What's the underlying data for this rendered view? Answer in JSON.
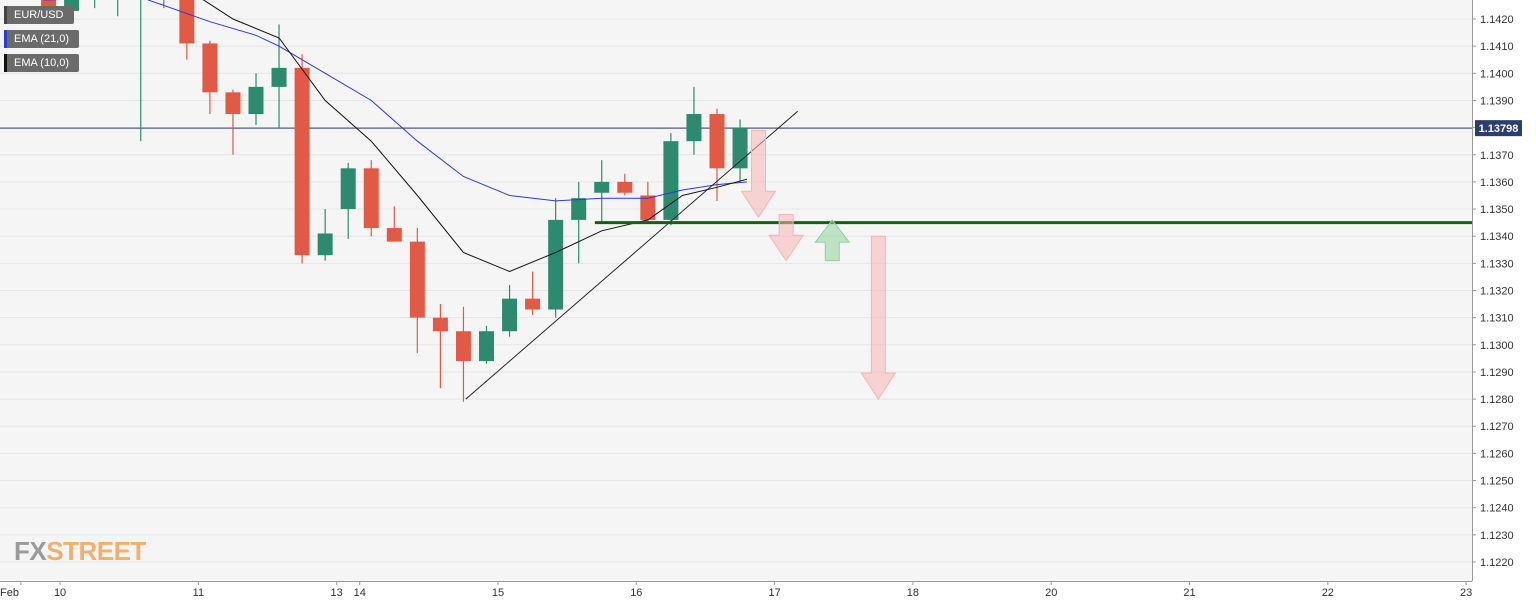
{
  "legend": [
    {
      "label": "EUR/USD",
      "color": "#555555"
    },
    {
      "label": "EMA (21,0)",
      "color": "#2a3bd6"
    },
    {
      "label": "EMA (10,0)",
      "color": "#111111"
    }
  ],
  "logo": {
    "part1": "FX",
    "part2": "STREET"
  },
  "colors": {
    "up": "#2e8a6e",
    "down": "#e05a45",
    "ema21": "#2a3bd6",
    "ema10": "#111111",
    "support": "#1a5c1a",
    "price_line": "#2b3e6e",
    "arrow_down": "#f7b4b4",
    "arrow_up": "#8fd49b",
    "grid": "#e6e6e6",
    "plot_bg": "#f5f5f5"
  },
  "chart_data": {
    "type": "candlestick",
    "symbol": "EUR/USD",
    "timeframe": "4h",
    "ylim": [
      1.1213,
      1.1427
    ],
    "y_ticks": [
      "1.1420",
      "1.1410",
      "1.1400",
      "1.1390",
      "1.1380",
      "1.1370",
      "1.1360",
      "1.1350",
      "1.1340",
      "1.1330",
      "1.1320",
      "1.1310",
      "1.1300",
      "1.1290",
      "1.1280",
      "1.1270",
      "1.1260",
      "1.1250",
      "1.1240",
      "1.1230",
      "1.1220"
    ],
    "x_labels": [
      {
        "label": "Feb",
        "slot": -0.2
      },
      {
        "label": "10",
        "slot": 1.5
      },
      {
        "label": "11",
        "slot": 7.5
      },
      {
        "label": "13",
        "slot": 13.5
      },
      {
        "label": "14",
        "slot": 14.5
      },
      {
        "label": "15",
        "slot": 20.5
      },
      {
        "label": "16",
        "slot": 26.5
      },
      {
        "label": "17",
        "slot": 32.5
      },
      {
        "label": "18",
        "slot": 38.5
      },
      {
        "label": "20",
        "slot": 44.5
      },
      {
        "label": "21",
        "slot": 50.5
      },
      {
        "label": "22",
        "slot": 56.5
      },
      {
        "label": "23",
        "slot": 62.5
      }
    ],
    "candles": [
      {
        "o": 1.143,
        "h": 1.1432,
        "l": 1.1419,
        "c": 1.1423
      },
      {
        "o": 1.1423,
        "h": 1.1427,
        "l": 1.1419,
        "c": 1.1428
      },
      {
        "o": 1.1428,
        "h": 1.143,
        "l": 1.1424,
        "c": 1.1428
      },
      {
        "o": 1.1428,
        "h": 1.1432,
        "l": 1.1421,
        "c": 1.1428
      },
      {
        "o": 1.1428,
        "h": 1.1431,
        "l": 1.1375,
        "c": 1.1429
      },
      {
        "o": 1.1429,
        "h": 1.1432,
        "l": 1.1424,
        "c": 1.1429
      },
      {
        "o": 1.1429,
        "h": 1.1432,
        "l": 1.1405,
        "c": 1.1411
      },
      {
        "o": 1.1411,
        "h": 1.1412,
        "l": 1.1385,
        "c": 1.1393
      },
      {
        "o": 1.1393,
        "h": 1.1394,
        "l": 1.137,
        "c": 1.1385
      },
      {
        "o": 1.1385,
        "h": 1.14,
        "l": 1.1381,
        "c": 1.1395
      },
      {
        "o": 1.1395,
        "h": 1.1418,
        "l": 1.138,
        "c": 1.1402
      },
      {
        "o": 1.1402,
        "h": 1.1407,
        "l": 1.133,
        "c": 1.1333
      },
      {
        "o": 1.1333,
        "h": 1.135,
        "l": 1.1331,
        "c": 1.1341
      },
      {
        "o": 1.135,
        "h": 1.1367,
        "l": 1.1339,
        "c": 1.1365
      },
      {
        "o": 1.1365,
        "h": 1.1368,
        "l": 1.134,
        "c": 1.1343
      },
      {
        "o": 1.1343,
        "h": 1.1351,
        "l": 1.1339,
        "c": 1.1338
      },
      {
        "o": 1.1338,
        "h": 1.1343,
        "l": 1.1297,
        "c": 1.131
      },
      {
        "o": 1.131,
        "h": 1.1315,
        "l": 1.1284,
        "c": 1.1305
      },
      {
        "o": 1.1305,
        "h": 1.1314,
        "l": 1.1279,
        "c": 1.1294
      },
      {
        "o": 1.1294,
        "h": 1.1307,
        "l": 1.1293,
        "c": 1.1305
      },
      {
        "o": 1.1305,
        "h": 1.1322,
        "l": 1.1303,
        "c": 1.1317
      },
      {
        "o": 1.1317,
        "h": 1.1327,
        "l": 1.1311,
        "c": 1.1313
      },
      {
        "o": 1.1313,
        "h": 1.1354,
        "l": 1.131,
        "c": 1.1346
      },
      {
        "o": 1.1346,
        "h": 1.136,
        "l": 1.133,
        "c": 1.1354
      },
      {
        "o": 1.1356,
        "h": 1.1368,
        "l": 1.1345,
        "c": 1.136
      },
      {
        "o": 1.136,
        "h": 1.1363,
        "l": 1.1355,
        "c": 1.1356
      },
      {
        "o": 1.1355,
        "h": 1.136,
        "l": 1.1345,
        "c": 1.1346
      },
      {
        "o": 1.1346,
        "h": 1.1378,
        "l": 1.1344,
        "c": 1.1375
      },
      {
        "o": 1.1375,
        "h": 1.1395,
        "l": 1.137,
        "c": 1.1385
      },
      {
        "o": 1.1385,
        "h": 1.1387,
        "l": 1.1353,
        "c": 1.1365
      },
      {
        "o": 1.1365,
        "h": 1.1383,
        "l": 1.136,
        "c": 1.138
      }
    ],
    "first_slot": 1,
    "ema21": [
      [
        0.8,
        1.1427
      ],
      [
        5.0,
        1.1428
      ],
      [
        8.0,
        1.1419
      ],
      [
        10.0,
        1.1414
      ],
      [
        11.0,
        1.141
      ],
      [
        13.0,
        1.14
      ],
      [
        15.0,
        1.139
      ],
      [
        17.0,
        1.1375
      ],
      [
        19.0,
        1.1362
      ],
      [
        21.0,
        1.1355
      ],
      [
        23.0,
        1.1353
      ],
      [
        25.0,
        1.1354
      ],
      [
        27.0,
        1.1354
      ],
      [
        28.5,
        1.1357
      ],
      [
        30.0,
        1.1359
      ],
      [
        31.3,
        1.136
      ]
    ],
    "ema10": [
      [
        7.0,
        1.1431
      ],
      [
        9.0,
        1.142
      ],
      [
        11.0,
        1.1413
      ],
      [
        13.0,
        1.139
      ],
      [
        15.0,
        1.1375
      ],
      [
        17.0,
        1.1355
      ],
      [
        19.0,
        1.1334
      ],
      [
        21.0,
        1.1327
      ],
      [
        23.0,
        1.1334
      ],
      [
        25.0,
        1.1342
      ],
      [
        27.0,
        1.1346
      ],
      [
        28.5,
        1.1355
      ],
      [
        30.0,
        1.1358
      ],
      [
        31.3,
        1.1361
      ]
    ],
    "trendline": [
      [
        19.1,
        1.128
      ],
      [
        33.5,
        1.1386
      ]
    ],
    "support": {
      "value": 1.1345,
      "from_slot": 24.7
    },
    "current_price": {
      "value": 1.13798,
      "label": "1.13798"
    },
    "arrows": [
      {
        "dir": "down",
        "slot": 31.8,
        "from": 1.1379,
        "to": 1.1347
      },
      {
        "dir": "down",
        "slot": 33.0,
        "from": 1.1348,
        "to": 1.1331
      },
      {
        "dir": "up",
        "slot": 35.0,
        "from": 1.1331,
        "to": 1.1346
      },
      {
        "dir": "down",
        "slot": 37.0,
        "from": 1.134,
        "to": 1.128
      }
    ]
  }
}
